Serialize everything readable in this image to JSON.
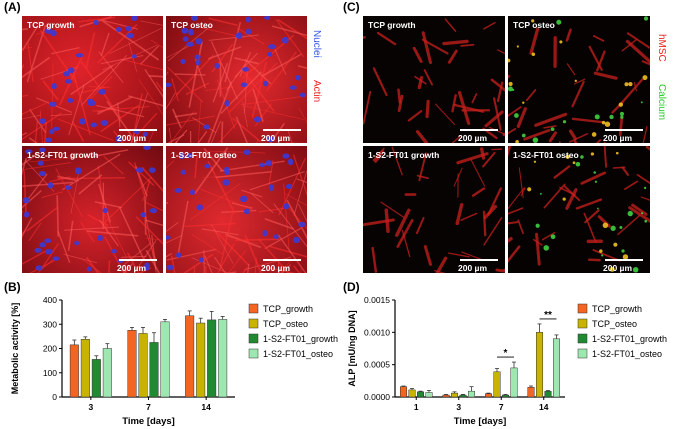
{
  "panels": {
    "A": {
      "letter": "(A)",
      "images": [
        {
          "label": "TCP growth",
          "scale": "200 µm"
        },
        {
          "label": "TCP osteo",
          "scale": "200 µm"
        },
        {
          "label": "1-S2-FT01 growth",
          "scale": "200 µm"
        },
        {
          "label": "1-S2-FT01 osteo",
          "scale": "200 µm"
        }
      ],
      "stain_labels": [
        {
          "text": "Nuclei",
          "color": "#3355ee"
        },
        {
          "text": "Actin",
          "color": "#ee2222"
        }
      ]
    },
    "B": {
      "letter": "(B)"
    },
    "C": {
      "letter": "(C)",
      "images": [
        {
          "label": "TCP growth",
          "scale": "200 µm"
        },
        {
          "label": "TCP osteo",
          "scale": "200 µm"
        },
        {
          "label": "1-S2-FT01 growth",
          "scale": "200 µm"
        },
        {
          "label": "1-S2-FT01 osteo",
          "scale": "200 µm"
        }
      ],
      "stain_labels": [
        {
          "text": "hMSC",
          "color": "#ee2222"
        },
        {
          "text": "Calcium",
          "color": "#22cc22"
        }
      ]
    },
    "D": {
      "letter": "(D)"
    }
  },
  "colors": {
    "TCP_growth": "#f26522",
    "TCP_osteo": "#c8b400",
    "S2_growth": "#1f8a32",
    "S2_osteo": "#9fe7b0"
  },
  "chart_data": [
    {
      "type": "bar",
      "xlabel": "Time [days]",
      "ylabel": "Metabolic activity [%]",
      "categories": [
        "3",
        "7",
        "14"
      ],
      "ylim": [
        0,
        400
      ],
      "yticks": [
        "0",
        "100",
        "200",
        "300",
        "400"
      ],
      "series": [
        {
          "name": "TCP_growth",
          "values": [
            215,
            275,
            335
          ],
          "errors": [
            20,
            12,
            20
          ]
        },
        {
          "name": "TCP_osteo",
          "values": [
            238,
            262,
            305
          ],
          "errors": [
            10,
            25,
            20
          ]
        },
        {
          "name": "1-S2-FT01_growth",
          "values": [
            155,
            225,
            318
          ],
          "errors": [
            15,
            40,
            35
          ]
        },
        {
          "name": "1-S2-FT01_osteo",
          "values": [
            200,
            310,
            320
          ],
          "errors": [
            20,
            10,
            12
          ]
        }
      ],
      "legend": "right"
    },
    {
      "type": "bar",
      "xlabel": "Time [days]",
      "ylabel": "ALP [mU/ng DNA]",
      "categories": [
        "1",
        "3",
        "7",
        "14"
      ],
      "ylim": [
        0,
        0.0015
      ],
      "yticks": [
        "0.0000",
        "0.0005",
        "0.0010",
        "0.0015"
      ],
      "series": [
        {
          "name": "TCP_growth",
          "values": [
            0.00016,
            3e-05,
            5e-05,
            0.00015
          ],
          "errors": [
            1e-05,
            1e-05,
            1e-05,
            2e-05
          ]
        },
        {
          "name": "TCP_osteo",
          "values": [
            0.00011,
            6e-05,
            0.00039,
            0.001
          ],
          "errors": [
            2e-05,
            2e-05,
            5e-05,
            0.00013
          ]
        },
        {
          "name": "1-S2-FT01_growth",
          "values": [
            8e-05,
            3e-05,
            3e-05,
            9e-05
          ],
          "errors": [
            1e-05,
            1e-05,
            1e-05,
            1e-05
          ]
        },
        {
          "name": "1-S2-FT01_osteo",
          "values": [
            7e-05,
            9e-05,
            0.00045,
            0.0009
          ],
          "errors": [
            3e-05,
            7e-05,
            9e-05,
            6e-05
          ]
        }
      ],
      "annotations": [
        {
          "category": "7",
          "text": "*"
        },
        {
          "category": "14",
          "text": "**"
        }
      ],
      "legend": "right"
    }
  ]
}
